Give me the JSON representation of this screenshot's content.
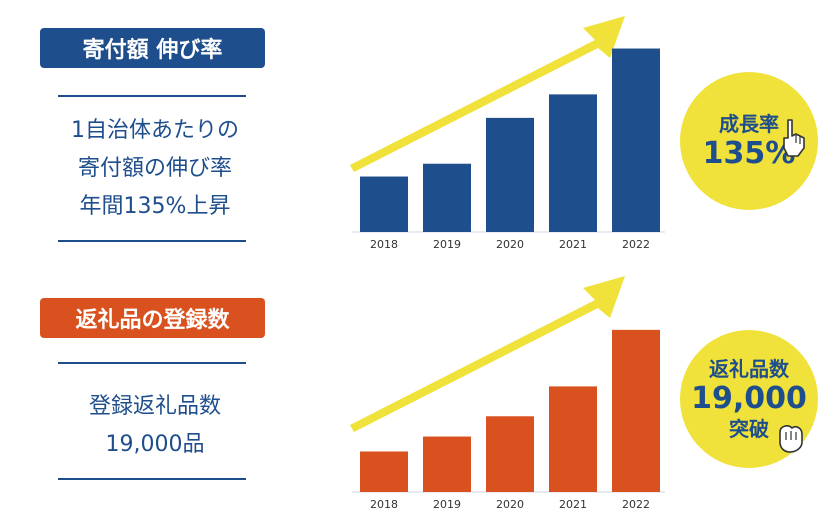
{
  "colors": {
    "blue": "#1f4e8c",
    "orange": "#d9511f",
    "yellow": "#f0e23a",
    "grid": "#cfd6e0"
  },
  "top": {
    "badge": "寄付額 伸び率",
    "desc_lines": [
      "1自治体あたりの",
      "寄付額の伸び率",
      "年間135%上昇"
    ],
    "circle_line1": "成長率",
    "circle_line2": "135%"
  },
  "bottom": {
    "badge": "返礼品の登録数",
    "desc_lines": [
      "登録返礼品数",
      "19,000品"
    ],
    "circle_line1": "返礼品数",
    "circle_line2": "19,000",
    "circle_line3": "突破"
  },
  "chart_data": [
    {
      "type": "bar",
      "categories": [
        "2018",
        "2019",
        "2020",
        "2021",
        "2022"
      ],
      "values": [
        52,
        64,
        107,
        129,
        172
      ],
      "ylim": [
        0,
        180
      ],
      "title": "",
      "xlabel": "",
      "ylabel": ""
    },
    {
      "type": "bar",
      "categories": [
        "2018",
        "2019",
        "2020",
        "2021",
        "2022"
      ],
      "values": [
        38,
        52,
        71,
        99,
        152
      ],
      "ylim": [
        0,
        180
      ],
      "title": "",
      "xlabel": "",
      "ylabel": ""
    }
  ]
}
